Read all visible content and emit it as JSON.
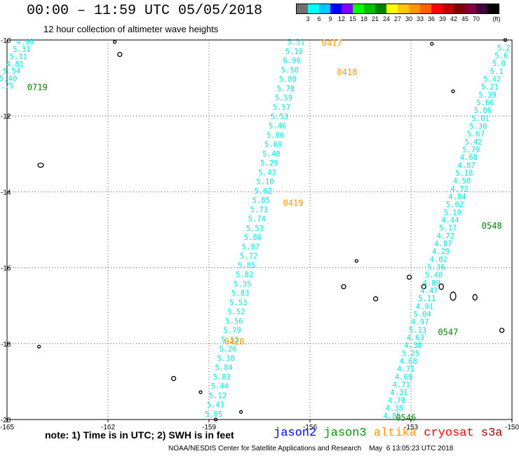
{
  "title": "00:00 – 11:59 UTC 05/05/2018",
  "subtitle": "12 hour collection of altimeter wave heights",
  "legend": {
    "colors": [
      "#707070",
      "#00ffff",
      "#00c8ff",
      "#0000ff",
      "#8000ff",
      "#00ff00",
      "#00c000",
      "#008000",
      "#ffff00",
      "#ffc800",
      "#ff9600",
      "#ff6000",
      "#ff0000",
      "#c00000",
      "#800000",
      "#800040",
      "#400040",
      "#000000"
    ],
    "labels": [
      "3",
      "6",
      "9",
      "12",
      "15",
      "18",
      "21",
      "24",
      "27",
      "30",
      "33",
      "36",
      "39",
      "42",
      "45",
      "70"
    ],
    "unit": "(ft)"
  },
  "map": {
    "lon_min": -165,
    "lon_max": -150,
    "lat_min": -20,
    "lat_max": -10,
    "lon_ticks": [
      "-165",
      "-162",
      "-159",
      "-156",
      "-153",
      "-150"
    ],
    "lat_ticks": [
      "-10",
      "-12",
      "-14",
      "-16",
      "-18",
      "-20"
    ],
    "point_color": "#00e5e5"
  },
  "tracks": [
    {
      "name": "track-far-left",
      "values": [
        "4.99",
        "5.31",
        "5.31",
        "4.81",
        "5.54",
        "5.40",
        "5.75"
      ],
      "lon_start": -164.2,
      "lat_start": -10.05,
      "lon_end": -164.8,
      "lat_end": -11.2
    },
    {
      "name": "track-center",
      "values": [
        "5.31",
        "5.10",
        "6.96",
        "5.50",
        "5.80",
        "5.78",
        "5.59",
        "5.57",
        "5.53",
        "5.46",
        "5.86",
        "5.69",
        "5.40",
        "5.29",
        "5.43",
        "5.10",
        "5.62",
        "5.85",
        "5.73",
        "5.74",
        "5.53",
        "5.86",
        "5.87",
        "5.72",
        "5.85",
        "5.82",
        "5.35",
        "5.83",
        "5.53",
        "5.52",
        "5.56",
        "5.79",
        "5.52",
        "5.26",
        "5.38",
        "5.84",
        "5.83",
        "5.44",
        "5.12",
        "5.41",
        "5.05"
      ],
      "lon_start": -156.15,
      "lat_start": -10.05,
      "lon_end": -158.6,
      "lat_end": -19.85
    },
    {
      "name": "track-right",
      "values": [
        "5.2",
        "5.6",
        "5.0",
        "5.1",
        "5.42",
        "5.21",
        "5.39",
        "5.66",
        "5.06",
        "5.01",
        "5.30",
        "5.67",
        "5.42",
        "5.79",
        "4.68",
        "4.87",
        "5.18",
        "4.50",
        "4.72",
        "4.84",
        "5.02",
        "5.10",
        "4.44",
        "5.17",
        "4.72",
        "4.87",
        "4.29",
        "4.02",
        "5.36",
        "5.40",
        "4.89",
        "4.47",
        "5.11",
        "4.91",
        "5.04",
        "4.97",
        "5.13",
        "4.63",
        "4.38",
        "5.25",
        "4.68",
        "4.71",
        "4.60",
        "4.71",
        "4.31",
        "4.70",
        "4.38",
        "4.85"
      ],
      "lon_start": -150.05,
      "lat_start": -10.2,
      "lon_end": -153.3,
      "lat_end": -19.9
    }
  ],
  "time_labels": [
    {
      "text": "0719",
      "lon": -164.4,
      "lat": -11.25,
      "color": "#008000"
    },
    {
      "text": "0417",
      "lon": -155.65,
      "lat": -10.08,
      "color": "#ff9600"
    },
    {
      "text": "0418",
      "lon": -155.2,
      "lat": -10.85,
      "color": "#ff9600"
    },
    {
      "text": "0419",
      "lon": -156.8,
      "lat": -14.3,
      "color": "#ff9600"
    },
    {
      "text": "0420",
      "lon": -158.55,
      "lat": -17.95,
      "color": "#ff9600"
    },
    {
      "text": "0548",
      "lon": -150.9,
      "lat": -14.9,
      "color": "#008000"
    },
    {
      "text": "0547",
      "lon": -152.2,
      "lat": -17.7,
      "color": "#008000"
    },
    {
      "text": "0546",
      "lon": -153.45,
      "lat": -19.95,
      "color": "#008000"
    }
  ],
  "islands": [
    {
      "lon": -161.8,
      "lat": -10.05,
      "rx": 2,
      "ry": 2
    },
    {
      "lon": -161.65,
      "lat": -10.38,
      "rx": 3,
      "ry": 3
    },
    {
      "lon": -164.0,
      "lat": -13.3,
      "rx": 4,
      "ry": 3
    },
    {
      "lon": -164.05,
      "lat": -18.08,
      "rx": 2,
      "ry": 2
    },
    {
      "lon": -160.05,
      "lat": -18.92,
      "rx": 3,
      "ry": 3
    },
    {
      "lon": -159.25,
      "lat": -19.28,
      "rx": 2,
      "ry": 2
    },
    {
      "lon": -158.05,
      "lat": -19.8,
      "rx": 2,
      "ry": 2
    },
    {
      "lon": -158.8,
      "lat": -20.0,
      "rx": 2,
      "ry": 2
    },
    {
      "lon": -154.62,
      "lat": -15.82,
      "rx": 2,
      "ry": 2
    },
    {
      "lon": -155.0,
      "lat": -16.5,
      "rx": 3,
      "ry": 3
    },
    {
      "lon": -154.05,
      "lat": -16.82,
      "rx": 3,
      "ry": 3
    },
    {
      "lon": -153.05,
      "lat": -16.25,
      "rx": 3,
      "ry": 3
    },
    {
      "lon": -152.62,
      "lat": -16.5,
      "rx": 3,
      "ry": 3
    },
    {
      "lon": -152.1,
      "lat": -16.5,
      "rx": 3,
      "ry": 4
    },
    {
      "lon": -151.75,
      "lat": -16.75,
      "rx": 4,
      "ry": 6
    },
    {
      "lon": -151.1,
      "lat": -16.78,
      "rx": 3,
      "ry": 4
    },
    {
      "lon": -150.3,
      "lat": -17.65,
      "rx": 3,
      "ry": 3
    },
    {
      "lon": -152.38,
      "lat": -10.1,
      "rx": 2,
      "ry": 2
    },
    {
      "lon": -151.75,
      "lat": -11.35,
      "rx": 2,
      "ry": 2
    },
    {
      "lon": -150.2,
      "lat": -10.0,
      "rx": 2,
      "ry": 2
    }
  ],
  "note": "note:  1) Time is in UTC; 2) SWH is in feet",
  "satellites": [
    {
      "name": "jason2",
      "color": "#0000ff"
    },
    {
      "name": "jason3",
      "color": "#009900"
    },
    {
      "name": "altika",
      "color": "#ff9600"
    },
    {
      "name": "cryosat",
      "color": "#ff0000"
    },
    {
      "name": "s3a",
      "color": "#990000"
    }
  ],
  "footer": "NOAA/NESDIS Center for Satellite Applications and Research    May  6 13:05:23 UTC 2018"
}
